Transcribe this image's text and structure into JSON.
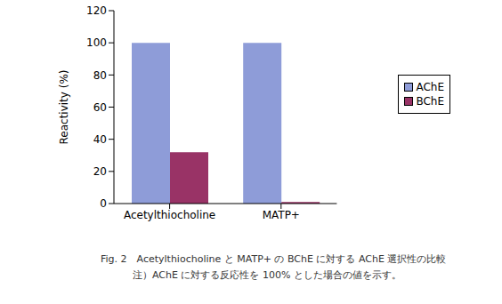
{
  "chart_data": {
    "type": "bar",
    "title": "Fig. 2　Acetylthiocholine と MATP+ の BChE に対する AChE 選択性の比較",
    "subtitle": "注）AChE に対する反応性を 100% とした場合の値を示す。",
    "y_label": "Reactivity (%)",
    "categories": [
      "Acetylthiocholine",
      "MATP+"
    ],
    "series": [
      {
        "name": "AChE",
        "color": "#8e9cd8",
        "values": [
          100,
          100
        ]
      },
      {
        "name": "BChE",
        "color": "#993366",
        "values": [
          32,
          1
        ]
      }
    ],
    "ylim": [
      0,
      120
    ],
    "yticks": [
      0,
      20,
      40,
      60,
      80,
      100,
      120
    ],
    "grid": false,
    "legend": "right"
  }
}
